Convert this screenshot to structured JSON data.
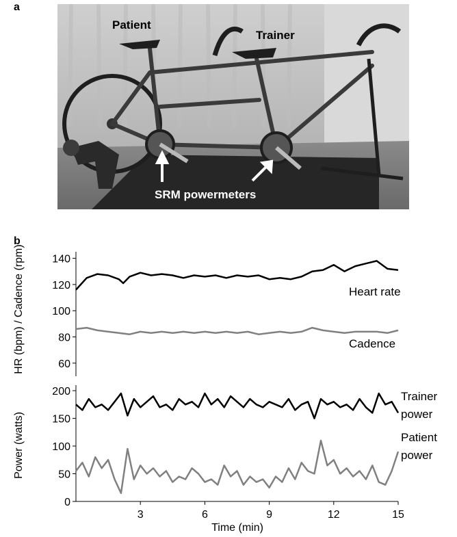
{
  "panel_a": {
    "label": "a",
    "photo_labels": {
      "patient": "Patient",
      "trainer": "Trainer",
      "powermeters": "SRM powermeters"
    }
  },
  "panel_b": {
    "label": "b"
  },
  "colors": {
    "black_series": "#000000",
    "gray_series": "#808080"
  },
  "chart_data": [
    {
      "type": "line",
      "ylabel": "HR (bpm) / Cadence (rpm)",
      "xlim": [
        0,
        15
      ],
      "ylim": [
        50,
        145
      ],
      "yticks": [
        60,
        80,
        100,
        120,
        140
      ],
      "series": [
        {
          "name": "Heart rate",
          "color": "#000000",
          "x": [
            0,
            0.5,
            1,
            1.5,
            2,
            2.2,
            2.5,
            3,
            3.5,
            4,
            4.5,
            5,
            5.5,
            6,
            6.5,
            7,
            7.5,
            8,
            8.5,
            9,
            9.5,
            10,
            10.5,
            11,
            11.5,
            12,
            12.5,
            13,
            13.5,
            14,
            14.5,
            15
          ],
          "y": [
            116,
            125,
            128,
            127,
            124,
            121,
            126,
            129,
            127,
            128,
            127,
            125,
            127,
            126,
            127,
            125,
            127,
            126,
            127,
            124,
            125,
            124,
            126,
            130,
            131,
            135,
            130,
            134,
            136,
            138,
            132,
            131
          ]
        },
        {
          "name": "Cadence",
          "color": "#808080",
          "x": [
            0,
            0.5,
            1,
            1.5,
            2,
            2.5,
            3,
            3.5,
            4,
            4.5,
            5,
            5.5,
            6,
            6.5,
            7,
            7.5,
            8,
            8.5,
            9,
            9.5,
            10,
            10.5,
            11,
            11.5,
            12,
            12.5,
            13,
            13.5,
            14,
            14.5,
            15
          ],
          "y": [
            86,
            87,
            85,
            84,
            83,
            82,
            84,
            83,
            84,
            83,
            84,
            83,
            84,
            83,
            84,
            83,
            84,
            82,
            83,
            84,
            83,
            84,
            87,
            85,
            84,
            83,
            84,
            84,
            84,
            83,
            85
          ]
        }
      ],
      "labels": [
        "Heart rate",
        "Cadence"
      ]
    },
    {
      "type": "line",
      "ylabel": "Power (watts)",
      "xlabel": "Time (min)",
      "xlim": [
        0,
        15
      ],
      "ylim": [
        0,
        210
      ],
      "xticks": [
        3,
        6,
        9,
        12,
        15
      ],
      "yticks": [
        0,
        50,
        100,
        150,
        200
      ],
      "series": [
        {
          "name": "Trainer power",
          "color": "#000000",
          "x": [
            0,
            0.3,
            0.6,
            0.9,
            1.2,
            1.5,
            1.8,
            2.1,
            2.4,
            2.7,
            3,
            3.3,
            3.6,
            3.9,
            4.2,
            4.5,
            4.8,
            5.1,
            5.4,
            5.7,
            6,
            6.3,
            6.6,
            6.9,
            7.2,
            7.5,
            7.8,
            8.1,
            8.4,
            8.7,
            9,
            9.3,
            9.6,
            9.9,
            10.2,
            10.5,
            10.8,
            11.1,
            11.4,
            11.7,
            12,
            12.3,
            12.6,
            12.9,
            13.2,
            13.5,
            13.8,
            14.1,
            14.4,
            14.7,
            15
          ],
          "y": [
            175,
            165,
            185,
            170,
            175,
            165,
            180,
            195,
            155,
            185,
            170,
            180,
            190,
            170,
            175,
            165,
            185,
            175,
            180,
            170,
            195,
            175,
            185,
            170,
            190,
            180,
            170,
            185,
            175,
            170,
            180,
            175,
            170,
            185,
            165,
            175,
            180,
            150,
            185,
            175,
            180,
            170,
            175,
            165,
            185,
            170,
            160,
            195,
            175,
            180,
            160
          ]
        },
        {
          "name": "Patient power",
          "color": "#808080",
          "x": [
            0,
            0.3,
            0.6,
            0.9,
            1.2,
            1.5,
            1.8,
            2.1,
            2.4,
            2.7,
            3,
            3.3,
            3.6,
            3.9,
            4.2,
            4.5,
            4.8,
            5.1,
            5.4,
            5.7,
            6,
            6.3,
            6.6,
            6.9,
            7.2,
            7.5,
            7.8,
            8.1,
            8.4,
            8.7,
            9,
            9.3,
            9.6,
            9.9,
            10.2,
            10.5,
            10.8,
            11.1,
            11.4,
            11.7,
            12,
            12.3,
            12.6,
            12.9,
            13.2,
            13.5,
            13.8,
            14.1,
            14.4,
            14.7,
            15
          ],
          "y": [
            55,
            70,
            45,
            80,
            60,
            75,
            40,
            15,
            95,
            40,
            65,
            50,
            60,
            45,
            55,
            35,
            45,
            40,
            60,
            50,
            35,
            40,
            30,
            65,
            45,
            55,
            30,
            45,
            35,
            40,
            25,
            45,
            35,
            60,
            40,
            70,
            55,
            50,
            110,
            65,
            75,
            50,
            60,
            45,
            55,
            40,
            65,
            35,
            30,
            55,
            90
          ]
        }
      ],
      "labels": [
        "Trainer",
        "power",
        "Patient",
        "power"
      ]
    }
  ]
}
